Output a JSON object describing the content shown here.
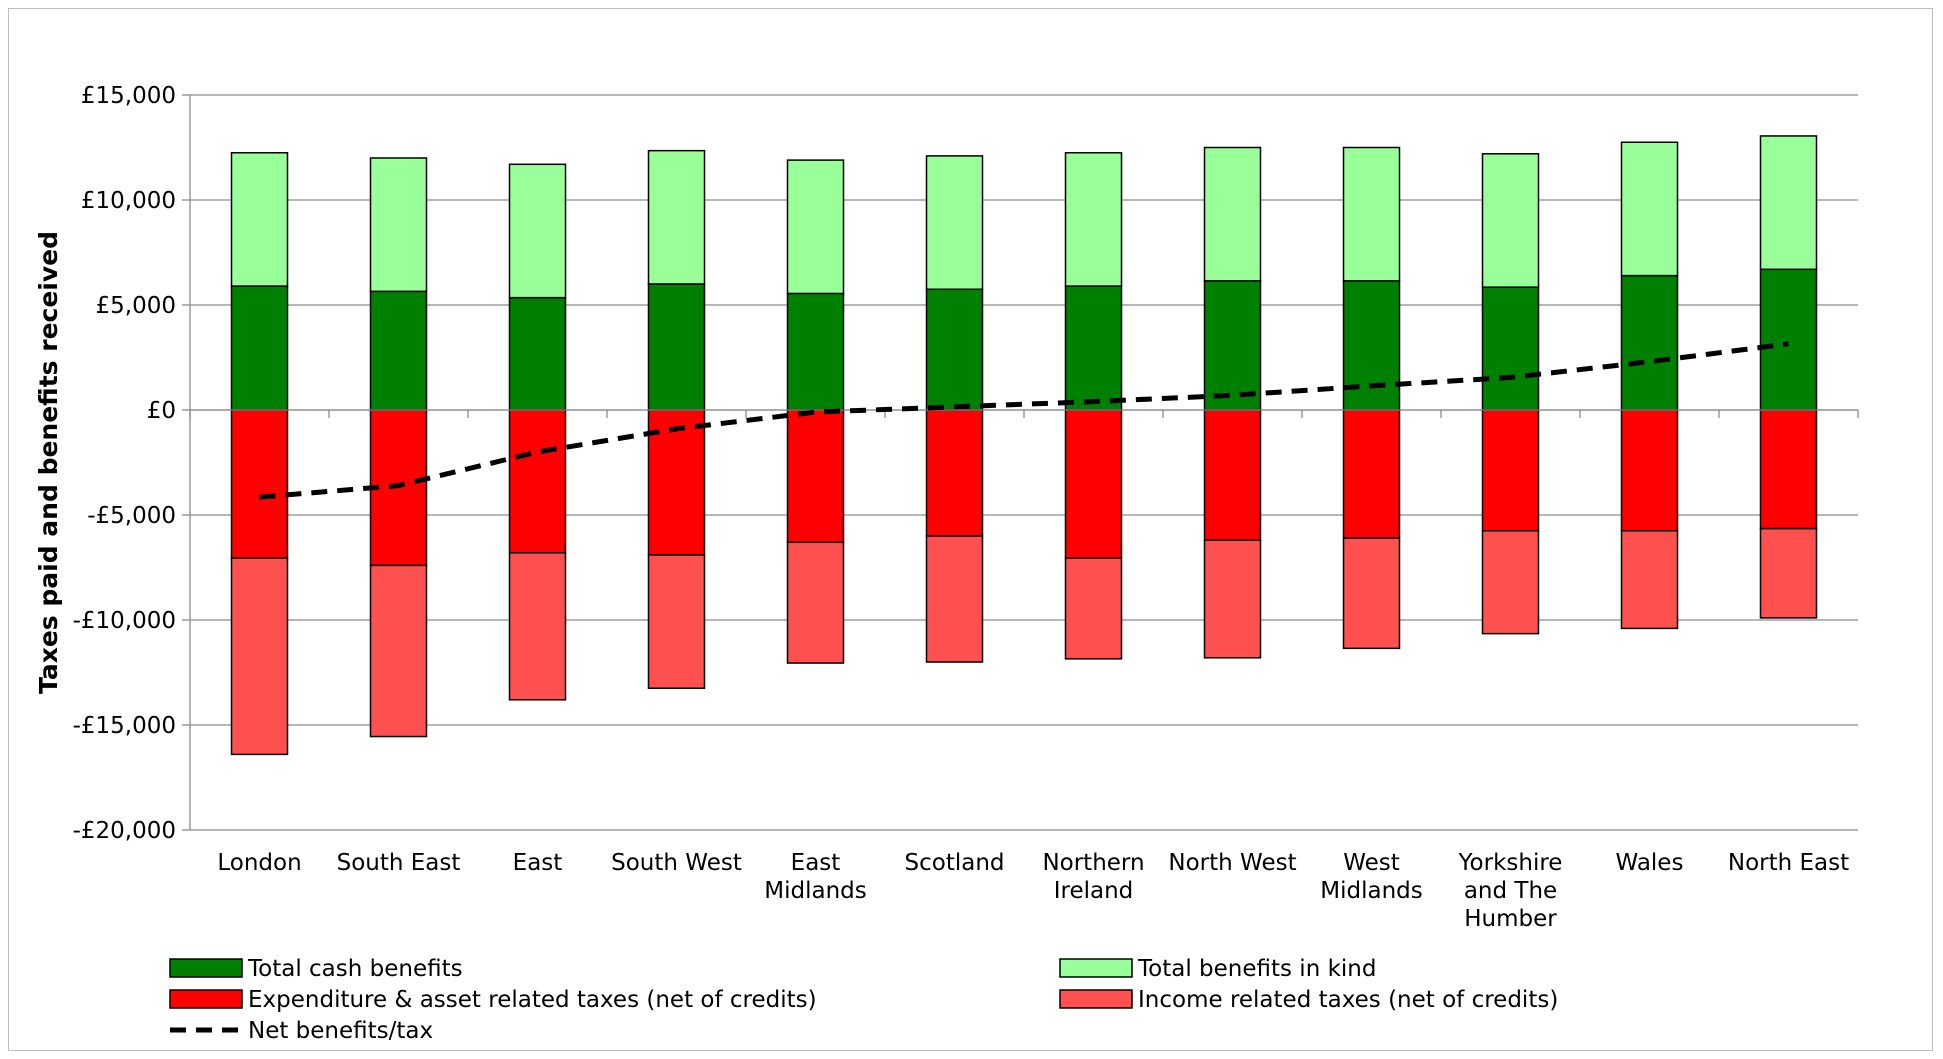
{
  "chart_data": {
    "type": "bar",
    "stacked": true,
    "title": "",
    "xlabel": "",
    "ylabel": "Taxes paid and benefits received",
    "ylim": [
      -20000,
      15000
    ],
    "yticks": [
      15000,
      10000,
      5000,
      0,
      -5000,
      -10000,
      -15000,
      -20000
    ],
    "ytick_labels": [
      "£15,000",
      "£10,000",
      "£5,000",
      "£0",
      "-£5,000",
      "-£10,000",
      "-£15,000",
      "-£20,000"
    ],
    "grid": true,
    "legend_position": "bottom",
    "categories": [
      [
        "London"
      ],
      [
        "South East"
      ],
      [
        "East"
      ],
      [
        "South West"
      ],
      [
        "East",
        "Midlands"
      ],
      [
        "Scotland"
      ],
      [
        "Northern",
        "Ireland"
      ],
      [
        "North West"
      ],
      [
        "West",
        "Midlands"
      ],
      [
        "Yorkshire",
        "and The",
        "Humber"
      ],
      [
        "Wales"
      ],
      [
        "North East"
      ]
    ],
    "series": [
      {
        "name": "Total cash benefits",
        "type": "bar",
        "color": "#008000",
        "values": [
          5900,
          5650,
          5350,
          6000,
          5550,
          5750,
          5900,
          6150,
          6150,
          5850,
          6400,
          6700
        ]
      },
      {
        "name": "Total benefits in kind",
        "type": "bar",
        "color": "#99ff99",
        "values": [
          6350,
          6350,
          6350,
          6350,
          6350,
          6350,
          6350,
          6350,
          6350,
          6350,
          6350,
          6350
        ]
      },
      {
        "name": "Expenditure & asset related taxes (net of credits)",
        "type": "bar",
        "color": "#ff0000",
        "values": [
          -7050,
          -7400,
          -6800,
          -6900,
          -6300,
          -6000,
          -7050,
          -6200,
          -6100,
          -5750,
          -5750,
          -5650
        ]
      },
      {
        "name": "Income related taxes (net of credits)",
        "type": "bar",
        "color": "#ff5050",
        "values": [
          -9350,
          -8150,
          -7000,
          -6350,
          -5750,
          -6000,
          -4800,
          -5600,
          -5250,
          -4900,
          -4650,
          -4250
        ]
      },
      {
        "name": "Net benefits/tax",
        "type": "line",
        "style": "dashed",
        "color": "#000000",
        "values": [
          -4150,
          -3600,
          -2000,
          -900,
          -100,
          150,
          400,
          700,
          1150,
          1550,
          2300,
          3150
        ]
      }
    ]
  },
  "legend": {
    "items": [
      {
        "label": "Total cash benefits",
        "color": "#008000",
        "kind": "box"
      },
      {
        "label": "Total benefits in kind",
        "color": "#99ff99",
        "kind": "box"
      },
      {
        "label": "Expenditure & asset related taxes (net of credits)",
        "color": "#ff0000",
        "kind": "box"
      },
      {
        "label": "Income related taxes (net of credits)",
        "color": "#ff5050",
        "kind": "box"
      },
      {
        "label": "Net benefits/tax",
        "color": "#000000",
        "kind": "dash"
      }
    ]
  }
}
